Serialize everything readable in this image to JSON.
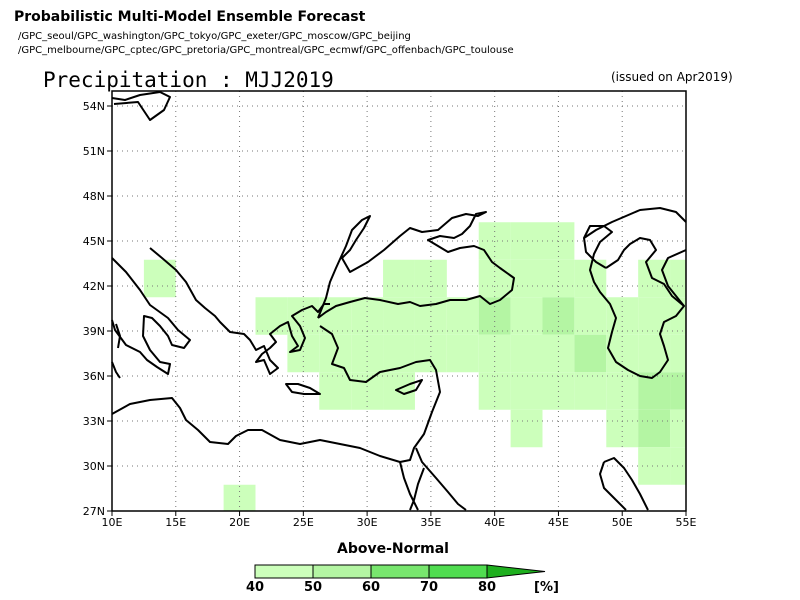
{
  "header": {
    "title": "Probabilistic Multi-Model Ensemble Forecast",
    "gpc_line1": "/GPC_seoul/GPC_washington/GPC_tokyo/GPC_exeter/GPC_moscow/GPC_beijing",
    "gpc_line2": "/GPC_melbourne/GPC_cptec/GPC_pretoria/GPC_montreal/GPC_ecmwf/GPC_offenbach/GPC_toulouse",
    "variable_title": "Precipitation : MJJ2019",
    "issued": "(issued on Apr2019)"
  },
  "chart_data": {
    "type": "heatmap",
    "category": "Above-Normal",
    "xlim": [
      10,
      55
    ],
    "ylim": [
      27,
      55
    ],
    "x_ticks": [
      "10E",
      "15E",
      "20E",
      "25E",
      "30E",
      "35E",
      "40E",
      "45E",
      "50E",
      "55E"
    ],
    "y_ticks": [
      "27N",
      "30N",
      "33N",
      "36N",
      "39N",
      "42N",
      "45N",
      "48N",
      "51N",
      "54N"
    ],
    "grid": true,
    "cell_size_deg": 2.5,
    "cells": [
      {
        "lon": 13.75,
        "lat": 42.5,
        "p": 40
      },
      {
        "lon": 20,
        "lat": 27.5,
        "p": 40
      },
      {
        "lon": 22.5,
        "lat": 40,
        "p": 40
      },
      {
        "lon": 25,
        "lat": 40,
        "p": 40
      },
      {
        "lon": 27.5,
        "lat": 40,
        "p": 40
      },
      {
        "lon": 30,
        "lat": 40,
        "p": 40
      },
      {
        "lon": 32.5,
        "lat": 40,
        "p": 40
      },
      {
        "lon": 35,
        "lat": 40,
        "p": 40
      },
      {
        "lon": 37.5,
        "lat": 40,
        "p": 40
      },
      {
        "lon": 25,
        "lat": 37.5,
        "p": 40
      },
      {
        "lon": 27.5,
        "lat": 37.5,
        "p": 40
      },
      {
        "lon": 30,
        "lat": 37.5,
        "p": 40
      },
      {
        "lon": 32.5,
        "lat": 37.5,
        "p": 40
      },
      {
        "lon": 35,
        "lat": 37.5,
        "p": 40
      },
      {
        "lon": 37.5,
        "lat": 37.5,
        "p": 40
      },
      {
        "lon": 27.5,
        "lat": 35,
        "p": 40
      },
      {
        "lon": 30,
        "lat": 35,
        "p": 40
      },
      {
        "lon": 32.5,
        "lat": 35,
        "p": 40
      },
      {
        "lon": 32.5,
        "lat": 42.5,
        "p": 40
      },
      {
        "lon": 35,
        "lat": 42.5,
        "p": 40
      },
      {
        "lon": 40,
        "lat": 45,
        "p": 40
      },
      {
        "lon": 42.5,
        "lat": 45,
        "p": 40
      },
      {
        "lon": 45,
        "lat": 45,
        "p": 40
      },
      {
        "lon": 40,
        "lat": 42.5,
        "p": 40
      },
      {
        "lon": 42.5,
        "lat": 42.5,
        "p": 40
      },
      {
        "lon": 45,
        "lat": 42.5,
        "p": 40
      },
      {
        "lon": 47.5,
        "lat": 42.5,
        "p": 40
      },
      {
        "lon": 52.5,
        "lat": 42.5,
        "p": 40
      },
      {
        "lon": 55,
        "lat": 42.5,
        "p": 40
      },
      {
        "lon": 40,
        "lat": 40,
        "p": 50
      },
      {
        "lon": 42.5,
        "lat": 40,
        "p": 40
      },
      {
        "lon": 45,
        "lat": 40,
        "p": 50
      },
      {
        "lon": 47.5,
        "lat": 40,
        "p": 40
      },
      {
        "lon": 50,
        "lat": 40,
        "p": 40
      },
      {
        "lon": 52.5,
        "lat": 40,
        "p": 40
      },
      {
        "lon": 55,
        "lat": 40,
        "p": 40
      },
      {
        "lon": 40,
        "lat": 37.5,
        "p": 40
      },
      {
        "lon": 42.5,
        "lat": 37.5,
        "p": 40
      },
      {
        "lon": 45,
        "lat": 37.5,
        "p": 40
      },
      {
        "lon": 47.5,
        "lat": 37.5,
        "p": 50
      },
      {
        "lon": 50,
        "lat": 37.5,
        "p": 40
      },
      {
        "lon": 52.5,
        "lat": 37.5,
        "p": 40
      },
      {
        "lon": 55,
        "lat": 37.5,
        "p": 40
      },
      {
        "lon": 40,
        "lat": 35,
        "p": 40
      },
      {
        "lon": 42.5,
        "lat": 35,
        "p": 40
      },
      {
        "lon": 45,
        "lat": 35,
        "p": 40
      },
      {
        "lon": 47.5,
        "lat": 35,
        "p": 40
      },
      {
        "lon": 50,
        "lat": 35,
        "p": 40
      },
      {
        "lon": 52.5,
        "lat": 35,
        "p": 50
      },
      {
        "lon": 55,
        "lat": 35,
        "p": 50
      },
      {
        "lon": 42.5,
        "lat": 32.5,
        "p": 40
      },
      {
        "lon": 50,
        "lat": 32.5,
        "p": 40
      },
      {
        "lon": 52.5,
        "lat": 32.5,
        "p": 50
      },
      {
        "lon": 55,
        "lat": 32.5,
        "p": 40
      },
      {
        "lon": 52.5,
        "lat": 30,
        "p": 40
      },
      {
        "lon": 55,
        "lat": 30,
        "p": 40
      }
    ]
  },
  "legend": {
    "title": "Above-Normal",
    "labels": [
      "40",
      "50",
      "60",
      "70",
      "80"
    ],
    "unit": "[%]",
    "colors": [
      "#ccffbb",
      "#b4f5a3",
      "#78e66e",
      "#50dc50",
      "#32c832",
      "#1eaf1e"
    ]
  },
  "colors": {
    "coast": "#000000",
    "grid": "#777777"
  }
}
